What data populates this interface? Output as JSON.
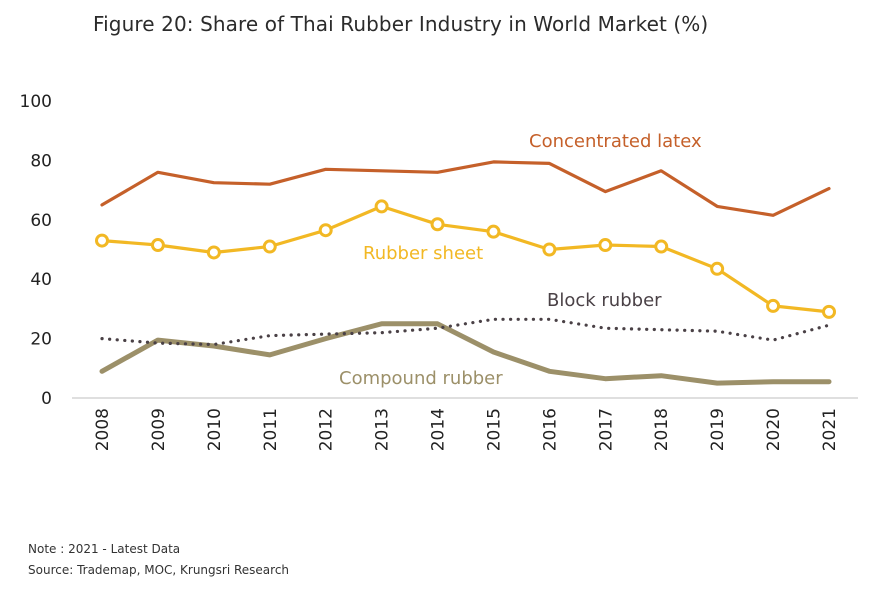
{
  "title": "Figure 20: Share of Thai Rubber Industry in World Market (%)",
  "notes": {
    "note": "Note : 2021 - Latest Data",
    "source": "Source: Trademap, MOC, Krungsri Research"
  },
  "chart_data": {
    "type": "line",
    "title": "Figure 20: Share of Thai Rubber Industry in World Market (%)",
    "xlabel": "",
    "ylabel": "",
    "ylim": [
      0,
      100
    ],
    "yticks": [
      0,
      20,
      40,
      60,
      80,
      100
    ],
    "grid": false,
    "legend": "labels placed next to lines",
    "x": [
      "2008",
      "2009",
      "2010",
      "2011",
      "2012",
      "2013",
      "2014",
      "2015",
      "2016",
      "2017",
      "2018",
      "2019",
      "2020",
      "2021"
    ],
    "series": [
      {
        "name": "Concentrated latex",
        "color": "#C5602A",
        "style": "solid",
        "markers": false,
        "values": [
          65,
          76,
          72.5,
          72,
          77,
          76.5,
          76,
          79.5,
          79,
          69.5,
          76.5,
          64.5,
          61.5,
          70.5
        ]
      },
      {
        "name": "Rubber sheet",
        "color": "#F2B824",
        "style": "solid",
        "markers": true,
        "values": [
          53,
          51.5,
          49,
          51,
          56.5,
          64.5,
          58.5,
          56,
          50,
          51.5,
          51,
          43.5,
          31,
          29
        ]
      },
      {
        "name": "Block rubber",
        "color": "#4A4146",
        "style": "dotted",
        "markers": false,
        "values": [
          20,
          18.5,
          18,
          21,
          21.5,
          22,
          23.5,
          26.5,
          26.5,
          23.5,
          23,
          22.5,
          19.5,
          24.5
        ]
      },
      {
        "name": "Compound rubber",
        "color": "#9C9069",
        "style": "solid",
        "markers": false,
        "values": [
          9,
          19.5,
          17.5,
          14.5,
          20,
          25,
          25,
          15.5,
          9,
          6.5,
          7.5,
          5,
          5.5,
          5.5
        ]
      }
    ]
  }
}
